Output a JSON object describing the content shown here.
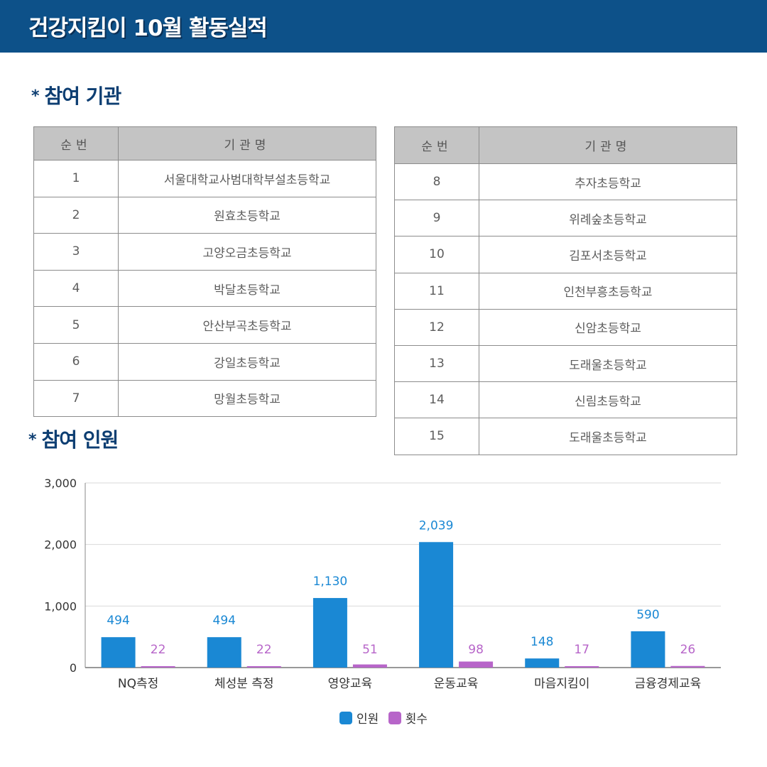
{
  "header": {
    "title": "건강지킴이 10월 활동실적"
  },
  "section_org": {
    "star": "*",
    "title": "참여 기관"
  },
  "section_people": {
    "star": "*",
    "title": "참여 인원"
  },
  "org_table": {
    "col_no": "순번",
    "col_name": "기관명",
    "left_rows": [
      {
        "no": "1",
        "name": "서울대학교사범대학부설초등학교"
      },
      {
        "no": "2",
        "name": "원효초등학교"
      },
      {
        "no": "3",
        "name": "고양오금초등학교"
      },
      {
        "no": "4",
        "name": "박달초등학교"
      },
      {
        "no": "5",
        "name": "안산부곡초등학교"
      },
      {
        "no": "6",
        "name": "강일초등학교"
      },
      {
        "no": "7",
        "name": "망월초등학교"
      }
    ],
    "right_rows": [
      {
        "no": "8",
        "name": "추자초등학교"
      },
      {
        "no": "9",
        "name": "위례숲초등학교"
      },
      {
        "no": "10",
        "name": "김포서초등학교"
      },
      {
        "no": "11",
        "name": "인천부흥초등학교"
      },
      {
        "no": "12",
        "name": "신암초등학교"
      },
      {
        "no": "13",
        "name": "도래울초등학교"
      },
      {
        "no": "14",
        "name": "신림초등학교"
      },
      {
        "no": "15",
        "name": "도래울초등학교"
      }
    ]
  },
  "chart_data": {
    "type": "bar",
    "categories": [
      "NQ측정",
      "체성분 측정",
      "영양교육",
      "운동교육",
      "마음지킴이",
      "금융경제교육"
    ],
    "series": [
      {
        "name": "인원",
        "color": "#1a88d4",
        "label_color": "#1a88d4",
        "values": [
          494,
          494,
          1130,
          2039,
          148,
          590
        ]
      },
      {
        "name": "횟수",
        "color": "#b765c9",
        "label_color": "#b765c9",
        "values": [
          22,
          22,
          51,
          98,
          17,
          26
        ]
      }
    ],
    "yticks": [
      "0",
      "1,000",
      "2,000",
      "3,000"
    ],
    "ylim": [
      0,
      3000
    ],
    "grid": true,
    "legend_position": "bottom-center"
  }
}
